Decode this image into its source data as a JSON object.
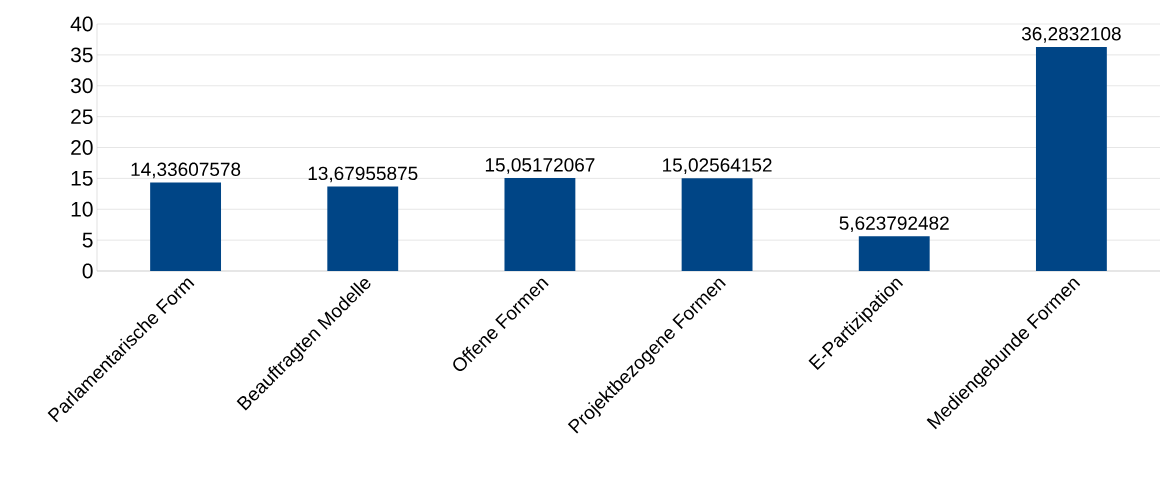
{
  "chart_data": {
    "type": "bar",
    "categories": [
      "Parlamentarische Form",
      "Beauftragten Modelle",
      "Offene Formen",
      "Projektbezogene Formen",
      "E-Partizipation",
      "Mediengebunde Formen"
    ],
    "values": [
      14.33607578,
      13.67955875,
      15.05172067,
      15.02564152,
      5.623792482,
      36.2832108
    ],
    "value_labels": [
      "14,33607578",
      "13,67955875",
      "15,05172067",
      "15,02564152",
      "5,623792482",
      "36,2832108"
    ],
    "color": "#004586",
    "ylim": [
      0,
      40
    ],
    "yticks": [
      0,
      5,
      10,
      15,
      20,
      25,
      30,
      35,
      40
    ],
    "grid": "y"
  }
}
